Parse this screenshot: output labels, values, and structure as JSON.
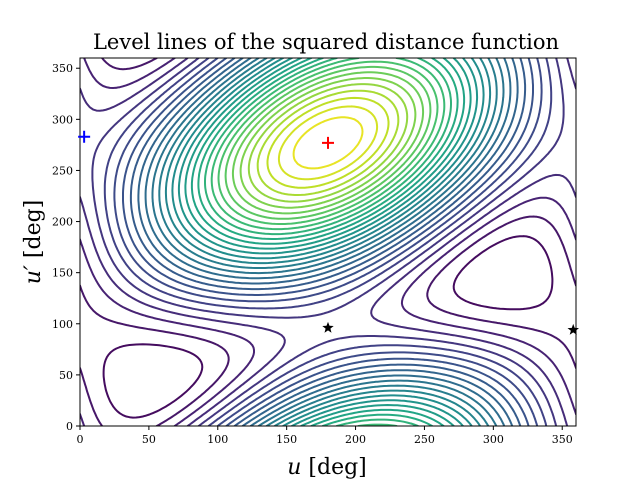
{
  "chart_data": {
    "type": "contour",
    "title": "Level lines of the squared distance function",
    "xlabel": {
      "var": "u",
      "unit": "[deg]"
    },
    "ylabel": {
      "var": "u′",
      "unit": "[deg]"
    },
    "xlim": [
      0,
      360
    ],
    "ylim": [
      0,
      360
    ],
    "xticks": [
      0,
      50,
      100,
      150,
      200,
      250,
      300,
      350
    ],
    "yticks": [
      0,
      50,
      100,
      150,
      200,
      250,
      300,
      350
    ],
    "colormap": "viridis",
    "grid": false,
    "minimum": [
      180,
      277
    ],
    "saddles": [
      [
        180,
        96
      ],
      [
        358,
        94
      ]
    ],
    "markers": [
      {
        "name": "minimum",
        "symbol": "plus",
        "color": "#ff0000",
        "x": 180,
        "y": 277
      },
      {
        "name": "saddle-1",
        "symbol": "star",
        "color": "#000000",
        "x": 180,
        "y": 96
      },
      {
        "name": "saddle-2",
        "symbol": "star",
        "color": "#000000",
        "x": 358,
        "y": 94
      },
      {
        "name": "blue-plus",
        "symbol": "plus",
        "color": "#0000ff",
        "x": 3,
        "y": 283
      }
    ]
  }
}
